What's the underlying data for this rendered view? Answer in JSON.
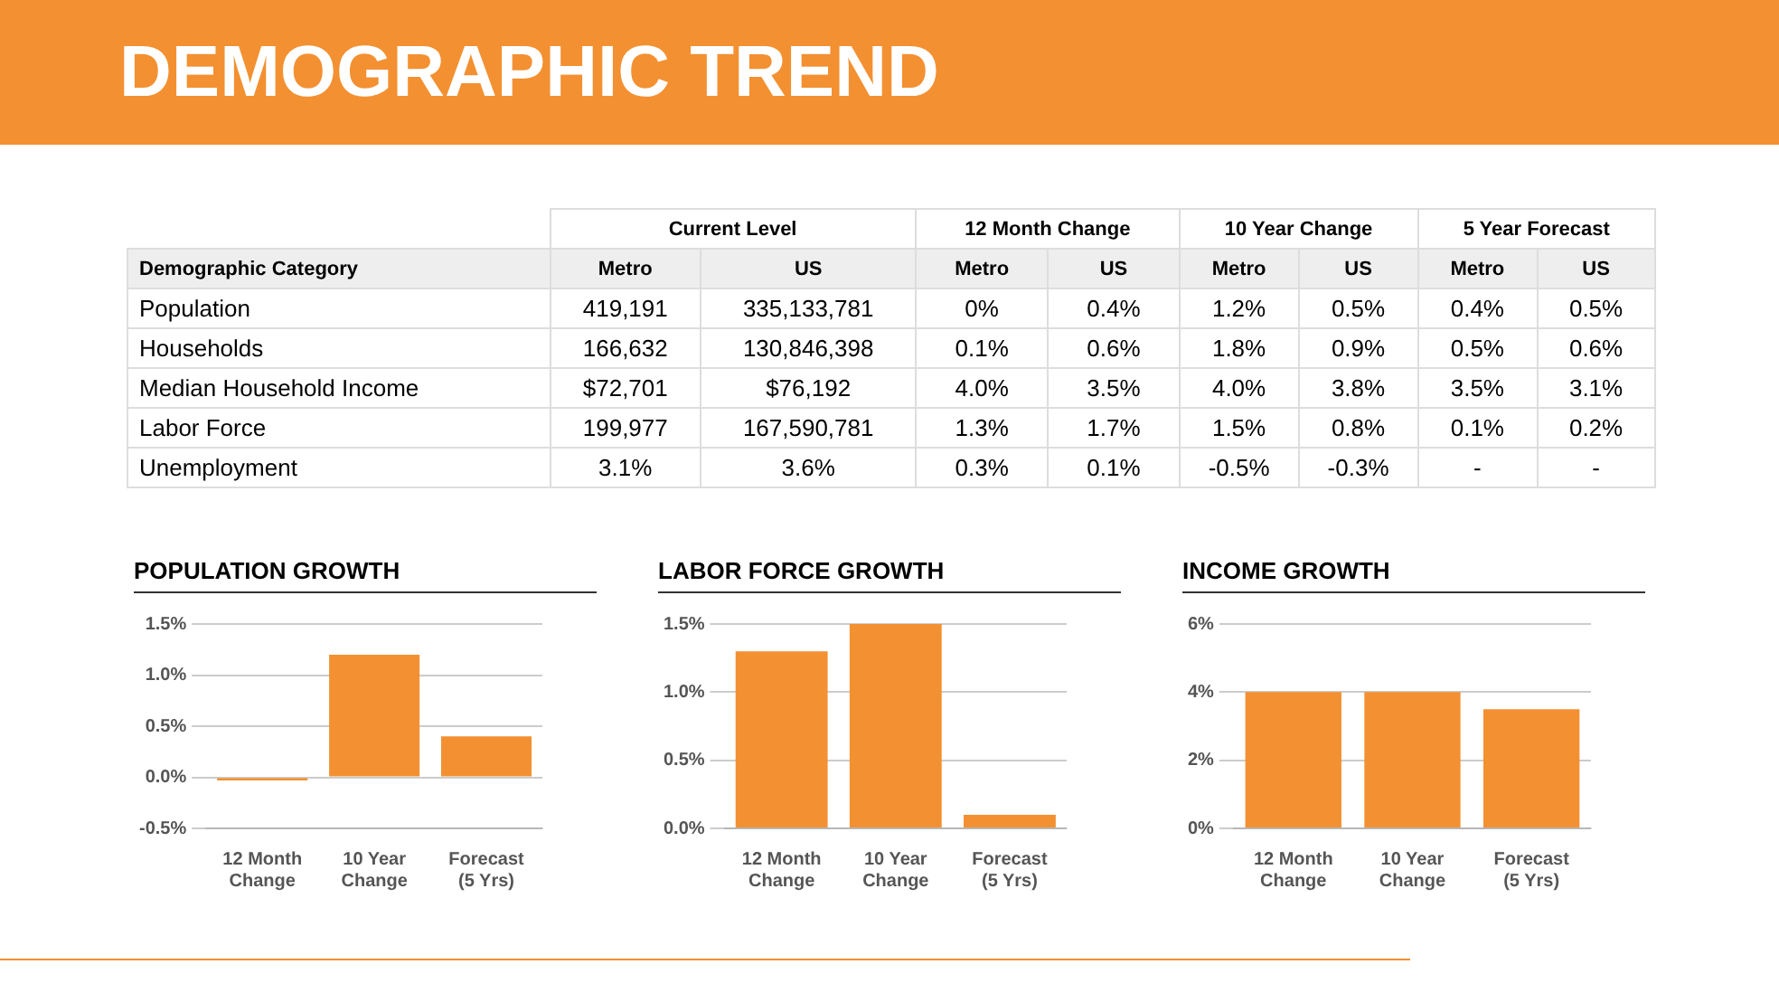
{
  "chart_data": [
    {
      "type": "other",
      "title": "DEMOGRAPHIC TREND",
      "categories": [
        "Demographic Category",
        "Metro",
        "US",
        "Metro",
        "US",
        "Metro",
        "US",
        "Metro",
        "US"
      ],
      "annotations": [
        "Current Level",
        "12 Month Change",
        "10 Year Change",
        "5 Year Forecast"
      ],
      "y_categories": [
        "Population",
        "Households",
        "Median Household Income",
        "Labor Force",
        "Unemployment"
      ],
      "cell_labels": [
        [
          "419,191",
          "335,133,781",
          "0%",
          "0.4%",
          "1.2%",
          "0.5%",
          "0.4%",
          "0.5%"
        ],
        [
          "166,632",
          "130,846,398",
          "0.1%",
          "0.6%",
          "1.8%",
          "0.9%",
          "0.5%",
          "0.6%"
        ],
        [
          "$72,701",
          "$76,192",
          "4.0%",
          "3.5%",
          "4.0%",
          "3.8%",
          "3.5%",
          "3.1%"
        ],
        [
          "199,977",
          "167,590,781",
          "1.3%",
          "1.7%",
          "1.5%",
          "0.8%",
          "0.1%",
          "0.2%"
        ],
        [
          "3.1%",
          "3.6%",
          "0.3%",
          "0.1%",
          "-0.5%",
          "-0.3%",
          "-",
          "-"
        ]
      ]
    },
    {
      "type": "bar",
      "title": "POPULATION GROWTH",
      "categories": [
        "12 Month\nChange",
        "10 Year\nChange",
        "Forecast\n(5 Yrs)"
      ],
      "values": [
        -0.03,
        1.2,
        0.4
      ],
      "color": "#f39031",
      "ylim": [
        -0.5,
        1.5
      ],
      "yticks": [
        {
          "value": -0.5,
          "label": "-0.5%"
        },
        {
          "value": 0,
          "label": "0.0%"
        },
        {
          "value": 0.5,
          "label": "0.5%"
        },
        {
          "value": 1,
          "label": "1.0%"
        },
        {
          "value": 1.5,
          "label": "1.5%"
        }
      ],
      "grid": "y"
    },
    {
      "type": "bar",
      "title": "LABOR FORCE GROWTH",
      "categories": [
        "12 Month\nChange",
        "10 Year\nChange",
        "Forecast\n(5 Yrs)"
      ],
      "values": [
        1.3,
        1.5,
        0.1
      ],
      "color": "#f39031",
      "ylim": [
        0,
        1.5
      ],
      "yticks": [
        {
          "value": 0,
          "label": "0.0%"
        },
        {
          "value": 0.5,
          "label": "0.5%"
        },
        {
          "value": 1,
          "label": "1.0%"
        },
        {
          "value": 1.5,
          "label": "1.5%"
        }
      ],
      "grid": "y"
    },
    {
      "type": "bar",
      "title": "INCOME GROWTH",
      "categories": [
        "12 Month\nChange",
        "10 Year\nChange",
        "Forecast\n(5 Yrs)"
      ],
      "values": [
        4.0,
        4.0,
        3.5
      ],
      "color": "#f39031",
      "ylim": [
        0,
        6
      ],
      "yticks": [
        {
          "value": 0,
          "label": "0%"
        },
        {
          "value": 2,
          "label": "2%"
        },
        {
          "value": 4,
          "label": "4%"
        },
        {
          "value": 6,
          "label": "6%"
        }
      ],
      "grid": "y"
    }
  ]
}
